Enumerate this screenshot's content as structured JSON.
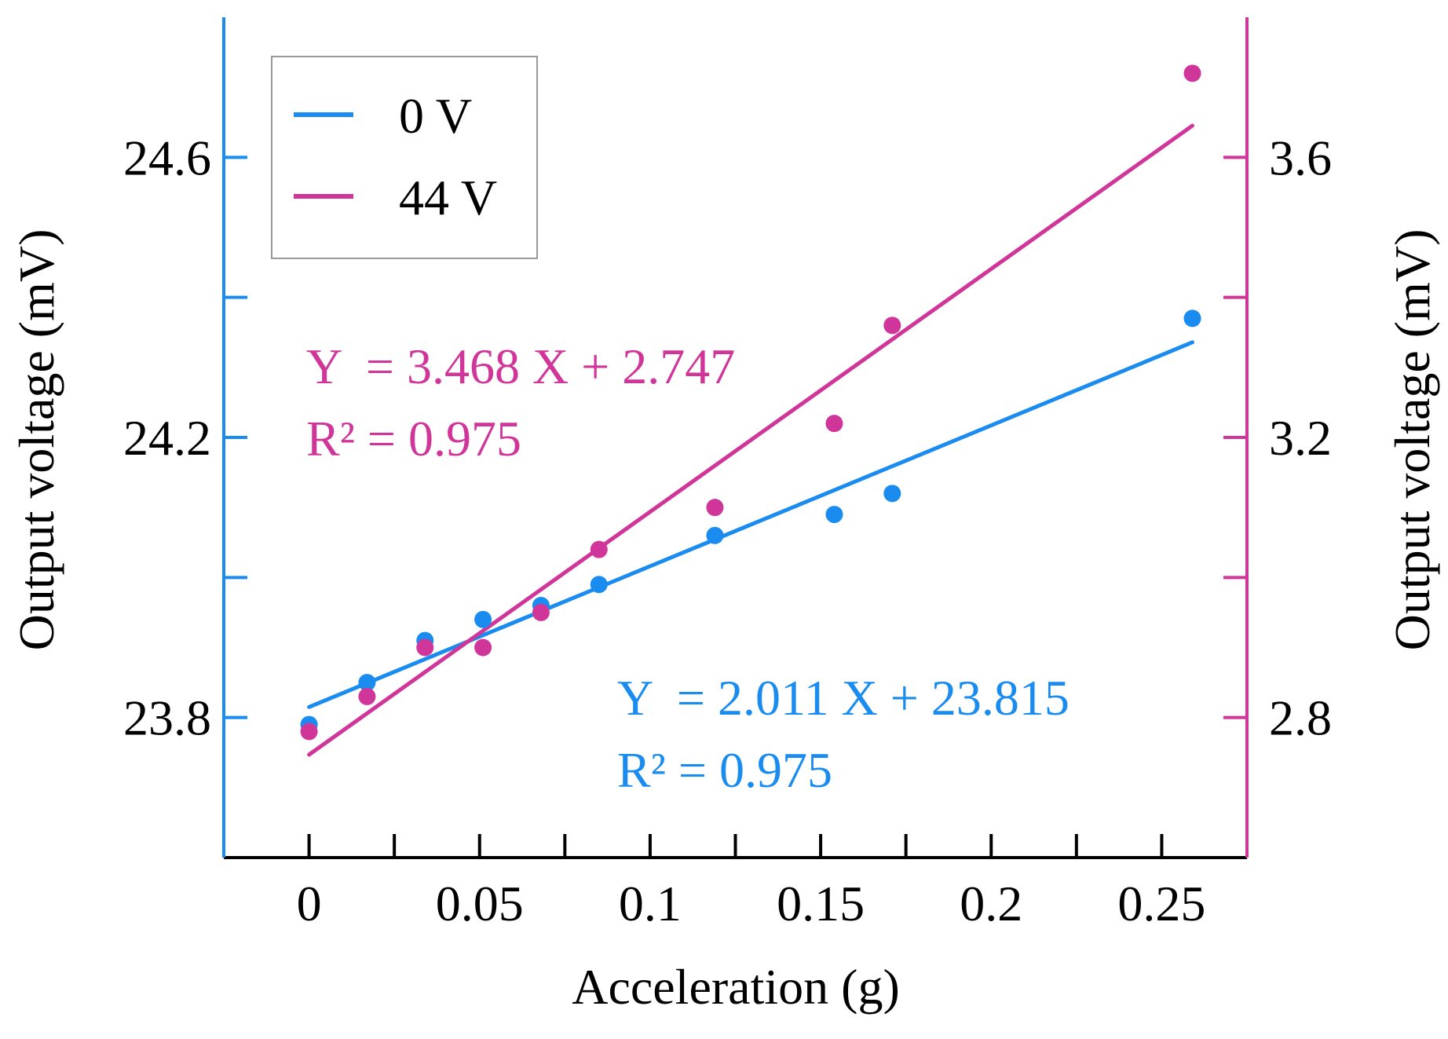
{
  "colors": {
    "series0": "#1a8cf0",
    "series44": "#d0369a",
    "axis": "#000000",
    "legend_border": "#999999"
  },
  "chart_data": {
    "type": "scatter",
    "xlabel": "Acceleration (g)",
    "ylabel_left": "Output voltage (mV)",
    "ylabel_right": "Output voltage (mV)",
    "xlim": [
      -0.025,
      0.275
    ],
    "ylim_left": [
      23.6,
      24.8
    ],
    "ylim_right": [
      2.6,
      3.8
    ],
    "x_ticks": [
      0,
      0.05,
      0.1,
      0.15,
      0.2,
      0.25
    ],
    "x_tick_labels": [
      "0",
      "0.05",
      "0.1",
      "0.15",
      "0.2",
      "0.25"
    ],
    "x_minor_ticks": [
      0.025,
      0.075,
      0.125,
      0.175,
      0.225
    ],
    "y_left_ticks": [
      23.8,
      24.2,
      24.6
    ],
    "y_left_tick_labels": [
      "23.8",
      "24.2",
      "24.6"
    ],
    "y_left_minor_ticks": [
      24.0,
      24.4
    ],
    "y_right_ticks": [
      2.8,
      3.2,
      3.6
    ],
    "y_right_tick_labels": [
      "2.8",
      "3.2",
      "3.6"
    ],
    "y_right_minor_ticks": [
      3.0,
      3.4
    ],
    "legend": [
      "0 V",
      "44 V"
    ],
    "legend_position": "top-left",
    "series": [
      {
        "name": "0 V",
        "axis": "left",
        "color": "#1a8cf0",
        "x": [
          0,
          0.017,
          0.034,
          0.051,
          0.068,
          0.085,
          0.119,
          0.154,
          0.171,
          0.259
        ],
        "y": [
          23.79,
          23.85,
          23.91,
          23.94,
          23.96,
          23.99,
          24.06,
          24.09,
          24.12,
          24.37
        ],
        "fit": {
          "slope": 2.011,
          "intercept": 23.815,
          "x_range": [
            0,
            0.259
          ]
        },
        "equation": "Y  = 2.011 X + 23.815",
        "r2": "R² = 0.975"
      },
      {
        "name": "44 V",
        "axis": "right",
        "color": "#d0369a",
        "x": [
          0,
          0.017,
          0.034,
          0.051,
          0.068,
          0.085,
          0.119,
          0.154,
          0.171,
          0.259
        ],
        "y": [
          2.78,
          2.83,
          2.9,
          2.9,
          2.95,
          3.04,
          3.1,
          3.22,
          3.36,
          3.72
        ],
        "fit": {
          "slope": 3.468,
          "intercept": 2.747,
          "x_range": [
            0,
            0.259
          ]
        },
        "equation": "Y  = 3.468 X + 2.747",
        "r2": "R² = 0.975"
      }
    ]
  }
}
